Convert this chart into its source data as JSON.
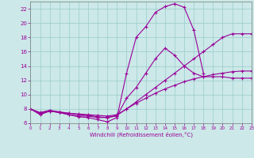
{
  "xlabel": "Windchill (Refroidissement éolien,°C)",
  "bg_color": "#cce8e8",
  "line_color": "#990099",
  "grid_color": "#99cccc",
  "xlim": [
    0,
    23
  ],
  "ylim": [
    6,
    23
  ],
  "xticks": [
    0,
    1,
    2,
    3,
    4,
    5,
    6,
    7,
    8,
    9,
    10,
    11,
    12,
    13,
    14,
    15,
    16,
    17,
    18,
    19,
    20,
    21,
    22,
    23
  ],
  "yticks": [
    6,
    8,
    10,
    12,
    14,
    16,
    18,
    20,
    22
  ],
  "curve1_x": [
    0,
    1,
    2,
    3,
    4,
    5,
    6,
    7,
    8,
    9,
    10,
    11,
    12,
    13,
    14,
    15,
    16,
    17,
    18
  ],
  "curve1_y": [
    8.0,
    7.2,
    7.7,
    7.5,
    7.2,
    6.9,
    6.8,
    6.5,
    6.2,
    6.8,
    13.0,
    18.0,
    19.5,
    21.5,
    22.3,
    22.7,
    22.2,
    19.0,
    13.0
  ],
  "curve2_x": [
    0,
    1,
    2,
    3,
    4,
    5,
    6,
    7,
    8,
    9,
    10,
    11,
    12,
    13,
    14,
    15,
    16,
    17,
    18,
    19,
    20,
    21,
    22,
    23
  ],
  "curve2_y": [
    8.0,
    7.3,
    7.7,
    7.5,
    7.2,
    7.0,
    7.0,
    6.8,
    6.8,
    7.0,
    9.5,
    11.0,
    13.0,
    15.0,
    16.5,
    15.5,
    14.0,
    13.0,
    12.5,
    12.5,
    12.5,
    12.3,
    12.3,
    12.3
  ],
  "curve3_x": [
    0,
    1,
    2,
    3,
    4,
    5,
    6,
    7,
    8,
    9,
    10,
    11,
    12,
    13,
    14,
    15,
    16,
    17,
    18,
    19,
    20,
    21,
    22,
    23
  ],
  "curve3_y": [
    8.0,
    7.5,
    7.8,
    7.5,
    7.4,
    7.3,
    7.2,
    7.1,
    7.0,
    7.2,
    8.0,
    9.0,
    10.0,
    11.0,
    12.0,
    13.0,
    14.0,
    15.0,
    16.0,
    17.0,
    18.0,
    18.5,
    18.5,
    18.5
  ],
  "curve4_x": [
    0,
    1,
    2,
    3,
    4,
    5,
    6,
    7,
    8,
    9,
    10,
    11,
    12,
    13,
    14,
    15,
    16,
    17,
    18,
    19,
    20,
    21,
    22,
    23
  ],
  "curve4_y": [
    8.0,
    7.4,
    7.8,
    7.6,
    7.4,
    7.2,
    7.1,
    6.9,
    6.8,
    7.1,
    8.0,
    8.8,
    9.5,
    10.2,
    10.8,
    11.3,
    11.8,
    12.2,
    12.5,
    12.8,
    13.0,
    13.2,
    13.3,
    13.3
  ]
}
